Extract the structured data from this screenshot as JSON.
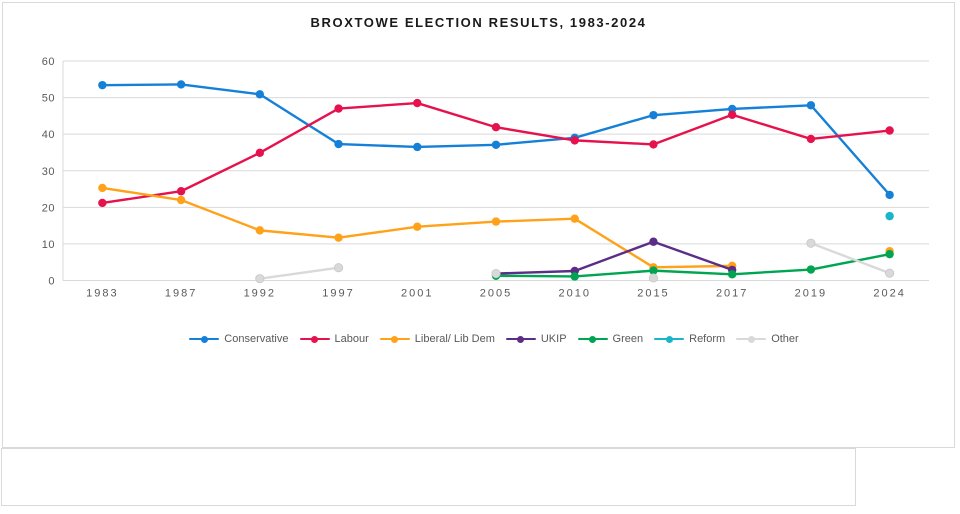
{
  "page": {
    "background_color": "#ffffff",
    "object_border_color": "#d9d9d9"
  },
  "chart_data": {
    "type": "line",
    "title": "BROXTOWE ELECTION RESULTS, 1983-2024",
    "xlabel": "",
    "ylabel": "",
    "categories": [
      "1983",
      "1987",
      "1992",
      "1997",
      "2001",
      "2005",
      "2010",
      "2015",
      "2017",
      "2019",
      "2024"
    ],
    "ylim": [
      0,
      60
    ],
    "yticks": [
      0,
      10,
      20,
      30,
      40,
      50,
      60
    ],
    "grid": "horizontal",
    "gridline_color": "#d9d9d9",
    "axis_label_color": "#595959",
    "legend_position": "bottom",
    "series": [
      {
        "name": "Conservative",
        "color": "#1580d8",
        "values": [
          53.4,
          53.6,
          50.9,
          37.3,
          36.5,
          37.1,
          39.0,
          45.2,
          46.9,
          47.9,
          23.4
        ]
      },
      {
        "name": "Labour",
        "color": "#e5124d",
        "values": [
          21.2,
          24.4,
          34.9,
          47.0,
          48.5,
          41.9,
          38.3,
          37.2,
          45.3,
          38.7,
          41.0
        ]
      },
      {
        "name": "Liberal/ Lib Dem",
        "color": "#ffa21a",
        "values": [
          25.3,
          22.0,
          13.7,
          11.7,
          14.7,
          16.1,
          16.9,
          3.6,
          4.0,
          null,
          8.0
        ]
      },
      {
        "name": "UKIP",
        "color": "#5c2d87",
        "values": [
          null,
          null,
          null,
          null,
          null,
          1.9,
          2.6,
          10.6,
          2.9,
          null,
          null
        ]
      },
      {
        "name": "Green",
        "color": "#00a551",
        "values": [
          null,
          null,
          null,
          null,
          null,
          1.3,
          1.1,
          2.7,
          1.7,
          3.0,
          7.2
        ]
      },
      {
        "name": "Reform",
        "color": "#1cb4c9",
        "values": [
          null,
          null,
          null,
          null,
          null,
          null,
          null,
          null,
          null,
          null,
          17.6
        ]
      },
      {
        "name": "Other",
        "color": "#d9d9d9",
        "values": [
          null,
          null,
          0.5,
          3.5,
          null,
          1.9,
          null,
          0.7,
          null,
          10.2,
          2.0
        ]
      }
    ]
  }
}
